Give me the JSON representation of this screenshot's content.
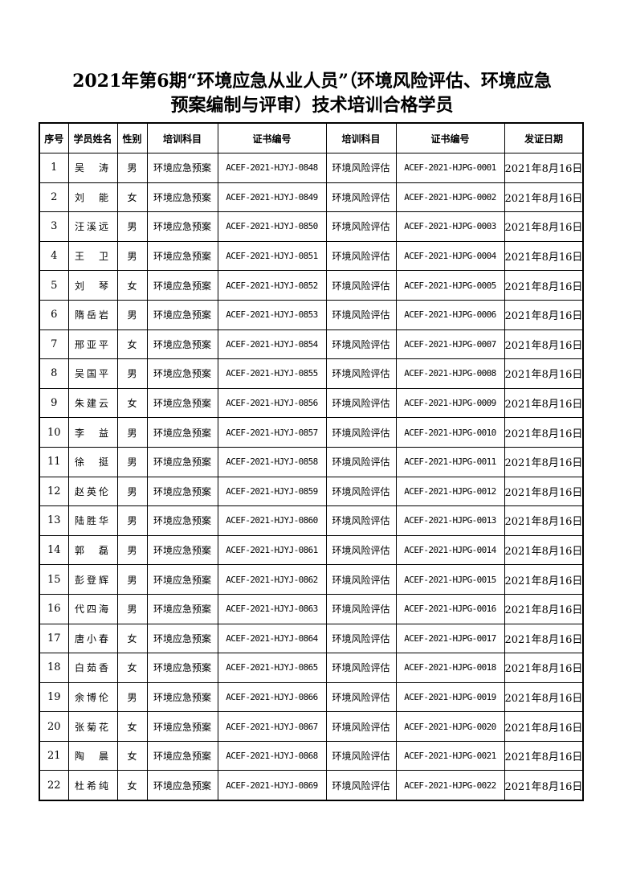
{
  "title": {
    "line1": "2021年第6期“环境应急从业人员”（环境风险评估、环境应急",
    "line2": "预案编制与评审）技术培训合格学员"
  },
  "table": {
    "headers": [
      "序号",
      "学员姓名",
      "性别",
      "培训科目",
      "证书编号",
      "培训科目",
      "证书编号",
      "发证日期"
    ],
    "rows": [
      [
        "1",
        "吴　涛",
        "男",
        "环境应急预案",
        "ACEF-2021-HJYJ-0848",
        "环境风险评估",
        "ACEF-2021-HJPG-0001",
        "2021年8月16日"
      ],
      [
        "2",
        "刘　能",
        "女",
        "环境应急预案",
        "ACEF-2021-HJYJ-0849",
        "环境风险评估",
        "ACEF-2021-HJPG-0002",
        "2021年8月16日"
      ],
      [
        "3",
        "汪溪远",
        "男",
        "环境应急预案",
        "ACEF-2021-HJYJ-0850",
        "环境风险评估",
        "ACEF-2021-HJPG-0003",
        "2021年8月16日"
      ],
      [
        "4",
        "王　卫",
        "男",
        "环境应急预案",
        "ACEF-2021-HJYJ-0851",
        "环境风险评估",
        "ACEF-2021-HJPG-0004",
        "2021年8月16日"
      ],
      [
        "5",
        "刘　琴",
        "女",
        "环境应急预案",
        "ACEF-2021-HJYJ-0852",
        "环境风险评估",
        "ACEF-2021-HJPG-0005",
        "2021年8月16日"
      ],
      [
        "6",
        "隋岳岩",
        "男",
        "环境应急预案",
        "ACEF-2021-HJYJ-0853",
        "环境风险评估",
        "ACEF-2021-HJPG-0006",
        "2021年8月16日"
      ],
      [
        "7",
        "邢亚平",
        "女",
        "环境应急预案",
        "ACEF-2021-HJYJ-0854",
        "环境风险评估",
        "ACEF-2021-HJPG-0007",
        "2021年8月16日"
      ],
      [
        "8",
        "吴国平",
        "男",
        "环境应急预案",
        "ACEF-2021-HJYJ-0855",
        "环境风险评估",
        "ACEF-2021-HJPG-0008",
        "2021年8月16日"
      ],
      [
        "9",
        "朱建云",
        "女",
        "环境应急预案",
        "ACEF-2021-HJYJ-0856",
        "环境风险评估",
        "ACEF-2021-HJPG-0009",
        "2021年8月16日"
      ],
      [
        "10",
        "李　益",
        "男",
        "环境应急预案",
        "ACEF-2021-HJYJ-0857",
        "环境风险评估",
        "ACEF-2021-HJPG-0010",
        "2021年8月16日"
      ],
      [
        "11",
        "徐　挺",
        "男",
        "环境应急预案",
        "ACEF-2021-HJYJ-0858",
        "环境风险评估",
        "ACEF-2021-HJPG-0011",
        "2021年8月16日"
      ],
      [
        "12",
        "赵英伦",
        "男",
        "环境应急预案",
        "ACEF-2021-HJYJ-0859",
        "环境风险评估",
        "ACEF-2021-HJPG-0012",
        "2021年8月16日"
      ],
      [
        "13",
        "陆胜华",
        "男",
        "环境应急预案",
        "ACEF-2021-HJYJ-0860",
        "环境风险评估",
        "ACEF-2021-HJPG-0013",
        "2021年8月16日"
      ],
      [
        "14",
        "郭　磊",
        "男",
        "环境应急预案",
        "ACEF-2021-HJYJ-0861",
        "环境风险评估",
        "ACEF-2021-HJPG-0014",
        "2021年8月16日"
      ],
      [
        "15",
        "彭登辉",
        "男",
        "环境应急预案",
        "ACEF-2021-HJYJ-0862",
        "环境风险评估",
        "ACEF-2021-HJPG-0015",
        "2021年8月16日"
      ],
      [
        "16",
        "代四海",
        "男",
        "环境应急预案",
        "ACEF-2021-HJYJ-0863",
        "环境风险评估",
        "ACEF-2021-HJPG-0016",
        "2021年8月16日"
      ],
      [
        "17",
        "唐小春",
        "女",
        "环境应急预案",
        "ACEF-2021-HJYJ-0864",
        "环境风险评估",
        "ACEF-2021-HJPG-0017",
        "2021年8月16日"
      ],
      [
        "18",
        "白茹香",
        "女",
        "环境应急预案",
        "ACEF-2021-HJYJ-0865",
        "环境风险评估",
        "ACEF-2021-HJPG-0018",
        "2021年8月16日"
      ],
      [
        "19",
        "余博伦",
        "男",
        "环境应急预案",
        "ACEF-2021-HJYJ-0866",
        "环境风险评估",
        "ACEF-2021-HJPG-0019",
        "2021年8月16日"
      ],
      [
        "20",
        "张菊花",
        "女",
        "环境应急预案",
        "ACEF-2021-HJYJ-0867",
        "环境风险评估",
        "ACEF-2021-HJPG-0020",
        "2021年8月16日"
      ],
      [
        "21",
        "陶　晨",
        "女",
        "环境应急预案",
        "ACEF-2021-HJYJ-0868",
        "环境风险评估",
        "ACEF-2021-HJPG-0021",
        "2021年8月16日"
      ],
      [
        "22",
        "杜希纯",
        "女",
        "环境应急预案",
        "ACEF-2021-HJYJ-0869",
        "环境风险评估",
        "ACEF-2021-HJPG-0022",
        "2021年8月16日"
      ]
    ]
  }
}
